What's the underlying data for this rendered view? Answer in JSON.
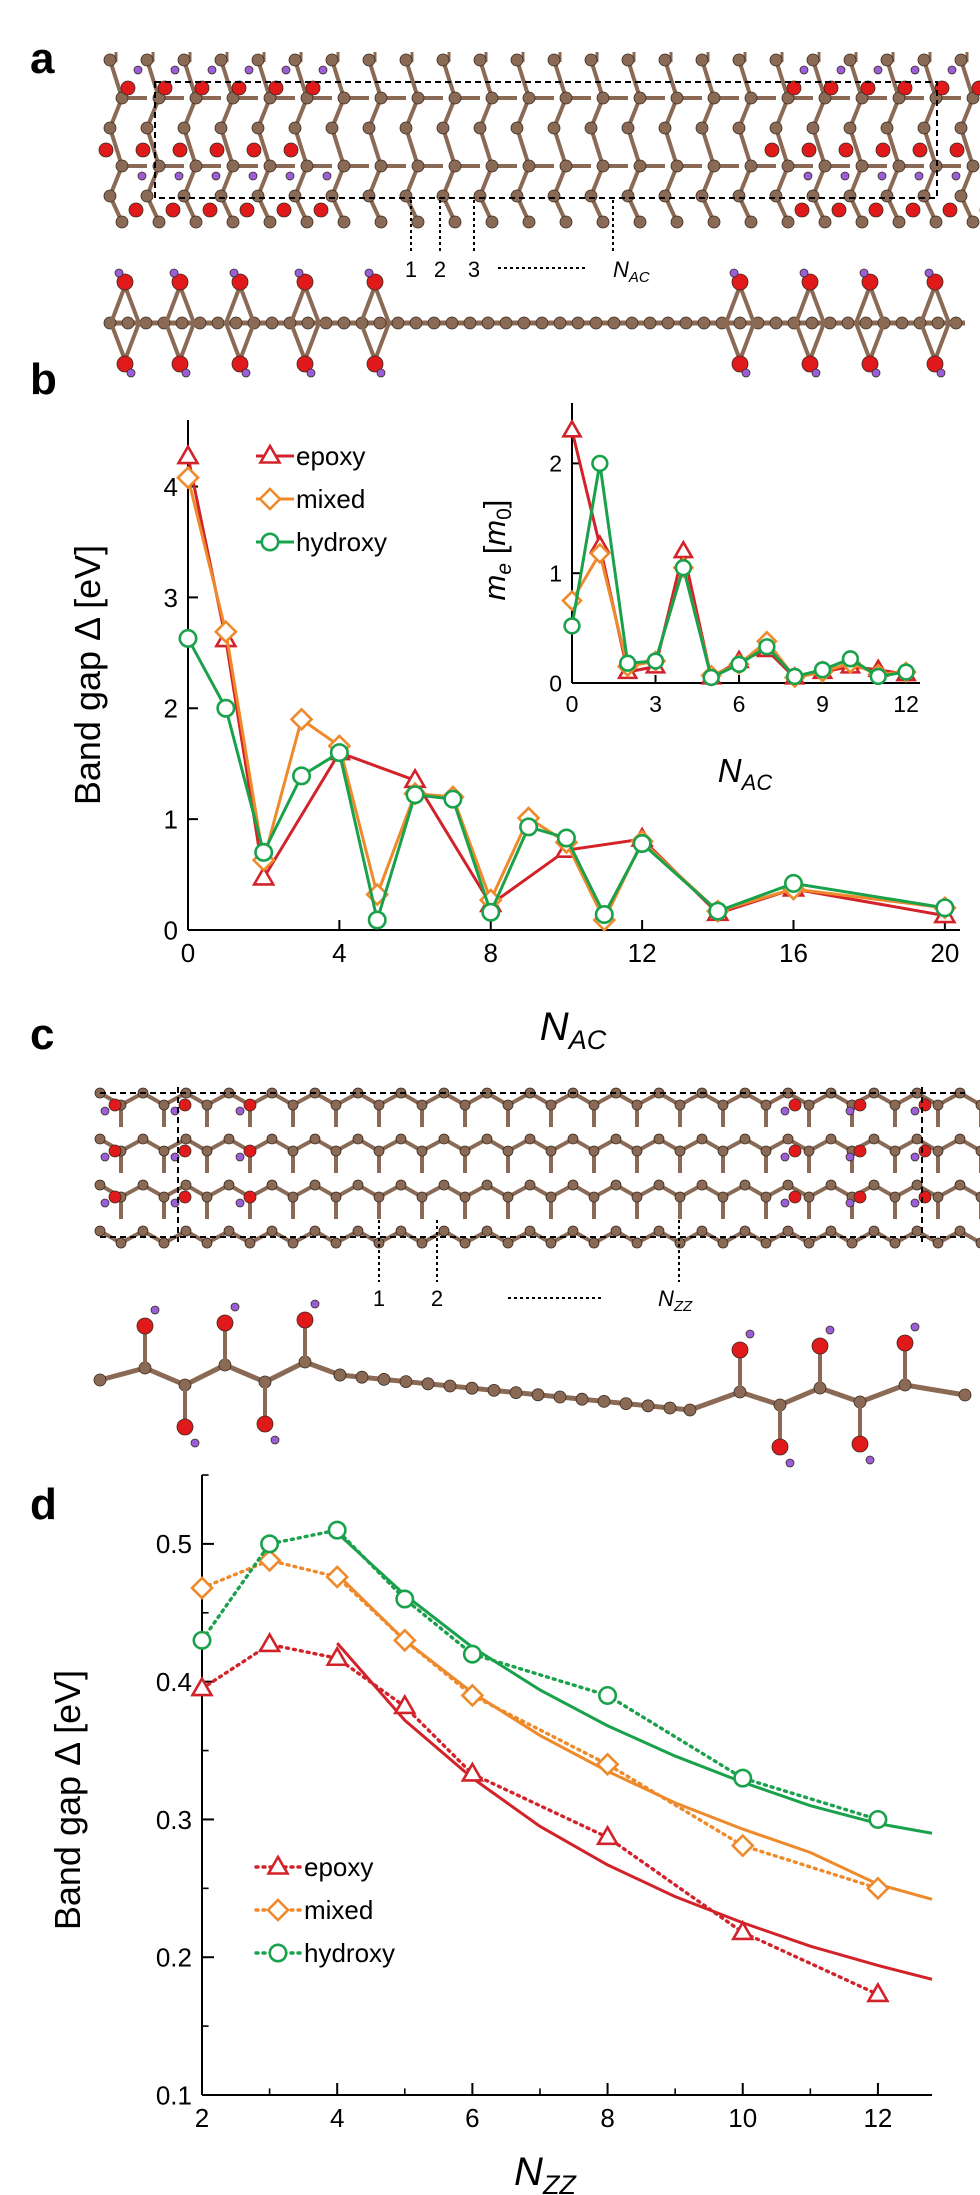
{
  "panels": {
    "a": "a",
    "b": "b",
    "c": "c",
    "d": "d"
  },
  "structure_a": {
    "index_labels": [
      "1",
      "2",
      "3"
    ],
    "n_label_main": "N",
    "n_label_sub": "AC"
  },
  "structure_c": {
    "index_labels": [
      "1",
      "2"
    ],
    "n_label_main": "N",
    "n_label_sub": "ZZ"
  },
  "colors": {
    "epoxy": "#d2232a",
    "mixed": "#ee8a2b",
    "hydroxy": "#1aa14b",
    "carbon": "#8a6a55",
    "oxygen": "#e01a1a",
    "hydrogen": "#9a5fd8"
  },
  "chart_data": [
    {
      "id": "b",
      "type": "line",
      "ylabel": "Band gap Δ  [eV]",
      "xlabel_main": "N",
      "xlabel_sub": "AC",
      "xlim": [
        0,
        20.4
      ],
      "ylim": [
        0,
        4.6
      ],
      "xticks": [
        0,
        4,
        8,
        12,
        16,
        20
      ],
      "yticks": [
        0,
        1,
        2,
        3,
        4
      ],
      "legend_position": "top-left",
      "series": [
        {
          "name": "epoxy",
          "marker": "triangle",
          "x": [
            0,
            1,
            2,
            4,
            6,
            8,
            10,
            12,
            14,
            16,
            20
          ],
          "y": [
            4.27,
            2.62,
            0.47,
            1.6,
            1.35,
            0.23,
            0.72,
            0.82,
            0.15,
            0.37,
            0.13
          ]
        },
        {
          "name": "mixed",
          "marker": "diamond",
          "x": [
            0,
            1,
            2,
            3,
            4,
            5,
            6,
            7,
            8,
            9,
            10,
            11,
            12,
            14,
            16,
            20
          ],
          "y": [
            4.08,
            2.69,
            0.63,
            1.9,
            1.66,
            0.32,
            1.23,
            1.2,
            0.27,
            1.01,
            0.79,
            0.09,
            0.8,
            0.17,
            0.37,
            0.2
          ]
        },
        {
          "name": "hydroxy",
          "marker": "circle",
          "x": [
            0,
            1,
            2,
            3,
            4,
            5,
            6,
            7,
            8,
            9,
            10,
            11,
            12,
            14,
            16,
            20
          ],
          "y": [
            2.63,
            2.0,
            0.7,
            1.39,
            1.6,
            0.09,
            1.22,
            1.18,
            0.16,
            0.93,
            0.83,
            0.14,
            0.78,
            0.17,
            0.42,
            0.2
          ]
        }
      ]
    },
    {
      "id": "b-inset",
      "type": "line",
      "ylabel_main": "m",
      "ylabel_sub": "e",
      "ylabel_unit_main": "m",
      "ylabel_unit_sub": "0",
      "xlabel_main": "N",
      "xlabel_sub": "AC",
      "xlim": [
        0,
        12.5
      ],
      "ylim": [
        0,
        2.55
      ],
      "xticks": [
        0,
        3,
        6,
        9,
        12
      ],
      "yticks": [
        0,
        1,
        2
      ],
      "series": [
        {
          "name": "epoxy",
          "marker": "triangle",
          "x": [
            0,
            1,
            2,
            3,
            4,
            5,
            6,
            7,
            8,
            9,
            10,
            11,
            12
          ],
          "y": [
            2.3,
            1.25,
            0.1,
            0.15,
            1.2,
            0.05,
            0.2,
            0.3,
            0.05,
            0.1,
            0.15,
            0.12,
            0.08
          ]
        },
        {
          "name": "mixed",
          "marker": "diamond",
          "x": [
            0,
            1,
            2,
            3,
            4,
            5,
            6,
            7,
            8,
            9,
            10,
            11,
            12
          ],
          "y": [
            0.75,
            1.18,
            0.15,
            0.2,
            1.05,
            0.07,
            0.17,
            0.38,
            0.05,
            0.1,
            0.18,
            0.08,
            0.1
          ]
        },
        {
          "name": "hydroxy",
          "marker": "circle",
          "x": [
            0,
            1,
            2,
            3,
            4,
            5,
            6,
            7,
            8,
            9,
            10,
            11,
            12
          ],
          "y": [
            0.52,
            2.0,
            0.18,
            0.2,
            1.05,
            0.05,
            0.17,
            0.33,
            0.06,
            0.12,
            0.22,
            0.06,
            0.1
          ]
        }
      ]
    },
    {
      "id": "d",
      "type": "line",
      "ylabel": "Band gap Δ  [eV]",
      "xlabel_main": "N",
      "xlabel_sub": "ZZ",
      "xlim": [
        2,
        12.8
      ],
      "ylim": [
        0.1,
        0.55
      ],
      "xticks": [
        2,
        4,
        6,
        8,
        10,
        12
      ],
      "yticks": [
        0.1,
        0.2,
        0.3,
        0.4,
        0.5
      ],
      "legend_position": "bottom-left",
      "series": [
        {
          "name": "epoxy",
          "marker": "triangle",
          "x": [
            2,
            3,
            4,
            5,
            6,
            8,
            10,
            12
          ],
          "y": [
            0.395,
            0.427,
            0.417,
            0.382,
            0.333,
            0.287,
            0.218,
            0.173
          ],
          "fit_x": [
            4,
            5,
            6,
            7,
            8,
            9,
            10,
            11,
            12,
            12.8
          ],
          "fit_y": [
            0.428,
            0.372,
            0.33,
            0.295,
            0.267,
            0.244,
            0.225,
            0.208,
            0.194,
            0.184
          ]
        },
        {
          "name": "mixed",
          "marker": "diamond",
          "x": [
            2,
            3,
            4,
            5,
            6,
            8,
            10,
            12
          ],
          "y": [
            0.468,
            0.488,
            0.476,
            0.43,
            0.39,
            0.34,
            0.281,
            0.25
          ],
          "fit_x": [
            4,
            5,
            6,
            7,
            8,
            9,
            10,
            11,
            12,
            12.8
          ],
          "fit_y": [
            0.478,
            0.43,
            0.392,
            0.361,
            0.335,
            0.312,
            0.293,
            0.276,
            0.253,
            0.242
          ]
        },
        {
          "name": "hydroxy",
          "marker": "circle",
          "x": [
            2,
            3,
            4,
            5,
            6,
            8,
            10,
            12
          ],
          "y": [
            0.43,
            0.5,
            0.51,
            0.46,
            0.42,
            0.39,
            0.33,
            0.3
          ],
          "fit_x": [
            4,
            5,
            6,
            7,
            8,
            9,
            10,
            11,
            12,
            12.8
          ],
          "fit_y": [
            0.508,
            0.463,
            0.425,
            0.394,
            0.368,
            0.346,
            0.327,
            0.31,
            0.297,
            0.29
          ]
        }
      ]
    }
  ]
}
